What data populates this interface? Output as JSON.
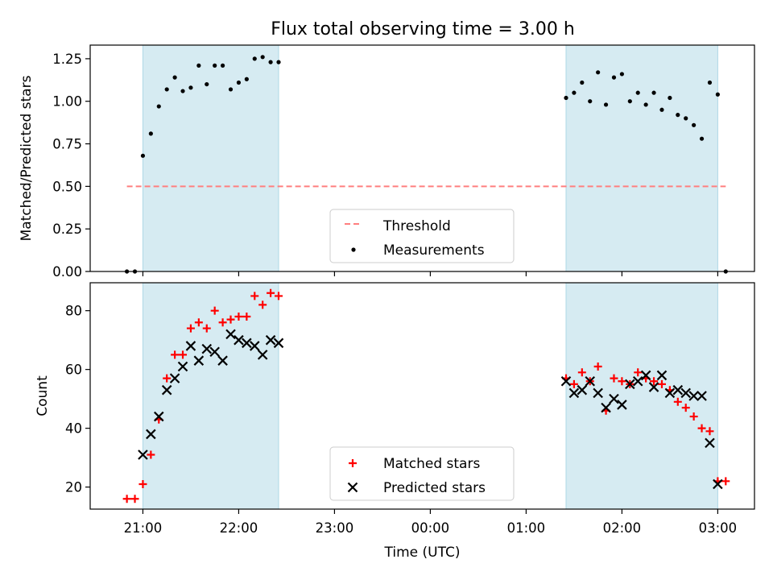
{
  "title": "Flux total observing time = 3.00 h",
  "colors": {
    "shade": "#add8e6",
    "threshold": "#ff7f7f",
    "measurement": "#000000",
    "matched": "#ff0000",
    "predicted": "#000000"
  },
  "chart_data": [
    {
      "type": "scatter",
      "panel": "top",
      "ylabel": "Matched/Predicted stars",
      "xlabel": "",
      "xlim": [
        "20:27",
        "03:23"
      ],
      "ylim": [
        0,
        1.33
      ],
      "yticks": [
        "0.00",
        "0.25",
        "0.50",
        "0.75",
        "1.00",
        "1.25"
      ],
      "ytick_values": [
        0,
        0.25,
        0.5,
        0.75,
        1.0,
        1.25
      ],
      "shaded_intervals": [
        [
          "21:00",
          "22:25"
        ],
        [
          "01:25",
          "03:00"
        ]
      ],
      "threshold": {
        "name": "Threshold",
        "y": 0.5,
        "x": [
          "20:50",
          "03:05"
        ],
        "style": "dashed"
      },
      "legend": {
        "position": "bottom-center",
        "entries": [
          "Threshold",
          "Measurements"
        ]
      },
      "series": [
        {
          "name": "Measurements",
          "x": [
            "20:50",
            "20:55",
            "21:00",
            "21:05",
            "21:10",
            "21:15",
            "21:20",
            "21:25",
            "21:30",
            "21:35",
            "21:40",
            "21:45",
            "21:50",
            "21:55",
            "22:00",
            "22:05",
            "22:10",
            "22:15",
            "22:20",
            "22:25",
            "01:25",
            "01:30",
            "01:35",
            "01:40",
            "01:45",
            "01:50",
            "01:55",
            "02:00",
            "02:05",
            "02:10",
            "02:15",
            "02:20",
            "02:25",
            "02:30",
            "02:35",
            "02:40",
            "02:45",
            "02:50",
            "02:55",
            "03:00",
            "03:05"
          ],
          "y": [
            0.0,
            0.0,
            0.68,
            0.81,
            0.97,
            1.07,
            1.14,
            1.06,
            1.08,
            1.21,
            1.1,
            1.21,
            1.21,
            1.07,
            1.11,
            1.13,
            1.25,
            1.26,
            1.23,
            1.23,
            1.02,
            1.05,
            1.11,
            1.0,
            1.17,
            0.98,
            1.14,
            1.16,
            1.0,
            1.05,
            0.98,
            1.05,
            0.95,
            1.02,
            0.92,
            0.9,
            0.86,
            0.78,
            1.11,
            1.04,
            0.0
          ]
        }
      ]
    },
    {
      "type": "scatter",
      "panel": "bottom",
      "ylabel": "Count",
      "xlabel": "Time (UTC)",
      "xlim": [
        "20:27",
        "03:23"
      ],
      "ylim": [
        12.5,
        89.5
      ],
      "yticks": [
        "20",
        "40",
        "60",
        "80"
      ],
      "ytick_values": [
        20,
        40,
        60,
        80
      ],
      "xticks": [
        "21:00",
        "22:00",
        "23:00",
        "00:00",
        "01:00",
        "02:00",
        "03:00"
      ],
      "shaded_intervals": [
        [
          "21:00",
          "22:25"
        ],
        [
          "01:25",
          "03:00"
        ]
      ],
      "legend": {
        "position": "bottom-center",
        "entries": [
          "Matched stars",
          "Predicted stars"
        ]
      },
      "series": [
        {
          "name": "Matched stars",
          "marker": "plus",
          "x": [
            "20:50",
            "20:55",
            "21:00",
            "21:05",
            "21:10",
            "21:15",
            "21:20",
            "21:25",
            "21:30",
            "21:35",
            "21:40",
            "21:45",
            "21:50",
            "21:55",
            "22:00",
            "22:05",
            "22:10",
            "22:15",
            "22:20",
            "22:25",
            "01:25",
            "01:30",
            "01:35",
            "01:40",
            "01:45",
            "01:50",
            "01:55",
            "02:00",
            "02:05",
            "02:10",
            "02:15",
            "02:20",
            "02:25",
            "02:30",
            "02:35",
            "02:40",
            "02:45",
            "02:50",
            "02:55",
            "03:00",
            "03:05"
          ],
          "y": [
            16,
            16,
            21,
            31,
            43,
            57,
            65,
            65,
            74,
            76,
            74,
            80,
            76,
            77,
            78,
            78,
            85,
            82,
            86,
            85,
            57,
            55,
            59,
            56,
            61,
            46,
            57,
            56,
            55,
            59,
            57,
            56,
            55,
            53,
            49,
            47,
            44,
            40,
            39,
            22,
            22
          ]
        },
        {
          "name": "Predicted stars",
          "marker": "x",
          "x": [
            "21:00",
            "21:05",
            "21:10",
            "21:15",
            "21:20",
            "21:25",
            "21:30",
            "21:35",
            "21:40",
            "21:45",
            "21:50",
            "21:55",
            "22:00",
            "22:05",
            "22:10",
            "22:15",
            "22:20",
            "22:25",
            "01:25",
            "01:30",
            "01:35",
            "01:40",
            "01:45",
            "01:50",
            "01:55",
            "02:00",
            "02:05",
            "02:10",
            "02:15",
            "02:20",
            "02:25",
            "02:30",
            "02:35",
            "02:40",
            "02:45",
            "02:50",
            "02:55",
            "03:00"
          ],
          "y": [
            31,
            38,
            44,
            53,
            57,
            61,
            68,
            63,
            67,
            66,
            63,
            72,
            70,
            69,
            68,
            65,
            70,
            69,
            56,
            52,
            53,
            56,
            52,
            47,
            50,
            48,
            55,
            56,
            58,
            54,
            58,
            52,
            53,
            52,
            51,
            51,
            35,
            21
          ]
        }
      ]
    }
  ]
}
